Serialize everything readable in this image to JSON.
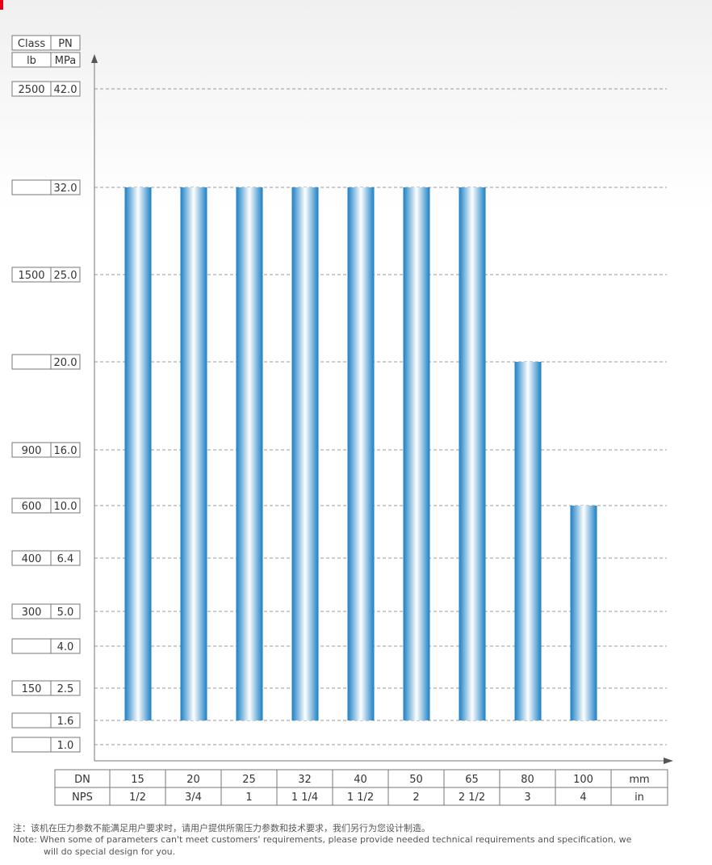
{
  "chart_data": {
    "type": "bar",
    "x_unit_dn": "mm",
    "x_unit_nps": "in",
    "row_label_dn": "DN",
    "row_label_nps": "NPS",
    "categories_dn": [
      "15",
      "20",
      "25",
      "32",
      "40",
      "50",
      "65",
      "80",
      "100"
    ],
    "categories_nps": [
      "1/2",
      "3/4",
      "1",
      "1 1/4",
      "1 1/2",
      "2",
      "2 1/2",
      "3",
      "4"
    ],
    "values": [
      32.0,
      32.0,
      32.0,
      32.0,
      32.0,
      32.0,
      32.0,
      20.0,
      10.0
    ],
    "bar_base": 1.6,
    "y_header": {
      "class": "Class",
      "pn": "PN",
      "lb": "lb",
      "mpa": "MPa"
    },
    "y_levels": [
      {
        "value": 42.0,
        "label": "42.0",
        "class": "2500"
      },
      {
        "value": 32.0,
        "label": "32.0",
        "class": ""
      },
      {
        "value": 25.0,
        "label": "25.0",
        "class": "1500"
      },
      {
        "value": 20.0,
        "label": "20.0",
        "class": ""
      },
      {
        "value": 16.0,
        "label": "16.0",
        "class": "900"
      },
      {
        "value": 10.0,
        "label": "10.0",
        "class": "600"
      },
      {
        "value": 6.4,
        "label": "6.4",
        "class": "400"
      },
      {
        "value": 5.0,
        "label": "5.0",
        "class": "300"
      },
      {
        "value": 4.0,
        "label": "4.0",
        "class": ""
      },
      {
        "value": 2.5,
        "label": "2.5",
        "class": "150"
      },
      {
        "value": 1.6,
        "label": "1.6",
        "class": ""
      },
      {
        "value": 1.0,
        "label": "1.0",
        "class": ""
      }
    ],
    "grid": "dashed",
    "bar_colors": {
      "edge": "#1a7fc4",
      "center": "#ffffff"
    }
  },
  "notes": {
    "cn": "注：该机在压力参数不能满足用户要求时，请用户提供所需压力参数和技术要求，我们另行为您设计制造。",
    "en1": "Note: When some of parameters can't meet customers' requirements, please provide needed technical requirements and specification, we",
    "en2": "will do special design for you."
  }
}
